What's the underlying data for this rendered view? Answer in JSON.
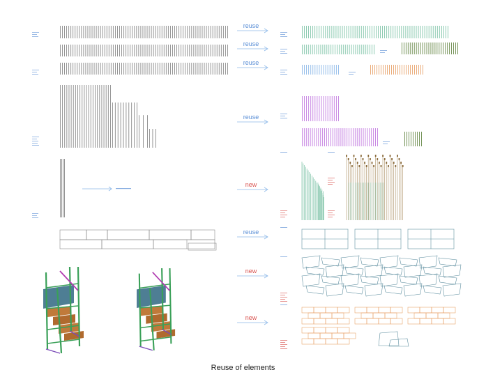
{
  "caption": "Reuse of elements",
  "arrows": [
    {
      "label": "reuse",
      "kind": "reuse"
    },
    {
      "label": "reuse",
      "kind": "reuse"
    },
    {
      "label": "reuse",
      "kind": "reuse"
    },
    {
      "label": "reuse",
      "kind": "reuse"
    },
    {
      "label": "new",
      "kind": "new"
    },
    {
      "label": "reuse",
      "kind": "reuse"
    },
    {
      "label": "new",
      "kind": "new"
    },
    {
      "label": "new",
      "kind": "new"
    }
  ],
  "colors": {
    "reuse": "#5b8fd6",
    "new": "#d9534f",
    "grey": "#8a8a8a",
    "teal": "#7fc4a8",
    "blue": "#8cb8e8",
    "orange": "#e8a46c",
    "purple": "#c27ae0",
    "olive": "#6a8a4a",
    "tan": "#b8a07a",
    "slate": "#5f8fa0"
  }
}
